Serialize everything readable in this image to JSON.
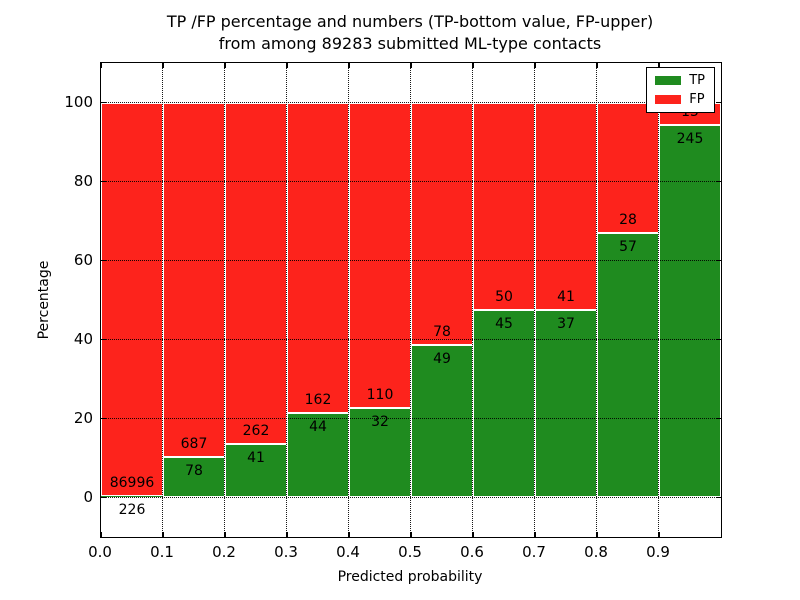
{
  "chart_data": {
    "type": "bar",
    "stacked_to_percent": true,
    "title_line1": "TP /FP percentage and numbers (TP-bottom value, FP-upper)",
    "title_line2": "from among 89283 submitted ML-type contacts",
    "total_submitted_contacts": 89283,
    "xlabel": "Predicted probability",
    "ylabel": "Percentage",
    "xlim": [
      0.0,
      1.0
    ],
    "ylim": [
      -10,
      110
    ],
    "x_tick_labels": [
      "0.0",
      "0.1",
      "0.2",
      "0.3",
      "0.4",
      "0.5",
      "0.6",
      "0.7",
      "0.8",
      "0.9"
    ],
    "y_tick_values": [
      0,
      20,
      40,
      60,
      80,
      100
    ],
    "y_tick_labels": [
      "0",
      "20",
      "40",
      "60",
      "80",
      "100"
    ],
    "grid": {
      "style": "dotted",
      "axes": "both",
      "color": "#000000"
    },
    "bar_edge_color": "#ffffff",
    "legend": {
      "position": "upper-right",
      "items": [
        {
          "label": "TP",
          "color": "#1f8b1f"
        },
        {
          "label": "FP",
          "color": "#fd231c"
        }
      ]
    },
    "label_semantics": "each bar labeled with raw counts: TP count below green/red boundary, FP count above it",
    "bins": [
      {
        "x_start": 0.0,
        "x_end": 0.1,
        "tp": 226,
        "fp": 86996
      },
      {
        "x_start": 0.1,
        "x_end": 0.2,
        "tp": 78,
        "fp": 687
      },
      {
        "x_start": 0.2,
        "x_end": 0.3,
        "tp": 41,
        "fp": 262
      },
      {
        "x_start": 0.3,
        "x_end": 0.4,
        "tp": 44,
        "fp": 162
      },
      {
        "x_start": 0.4,
        "x_end": 0.5,
        "tp": 32,
        "fp": 110
      },
      {
        "x_start": 0.5,
        "x_end": 0.6,
        "tp": 49,
        "fp": 78
      },
      {
        "x_start": 0.6,
        "x_end": 0.7,
        "tp": 45,
        "fp": 50
      },
      {
        "x_start": 0.7,
        "x_end": 0.8,
        "tp": 37,
        "fp": 41
      },
      {
        "x_start": 0.8,
        "x_end": 0.9,
        "tp": 57,
        "fp": 28
      },
      {
        "x_start": 0.9,
        "x_end": 1.0,
        "tp": 245,
        "fp": 15,
        "fp_label_occluded_by_legend": true
      }
    ]
  }
}
